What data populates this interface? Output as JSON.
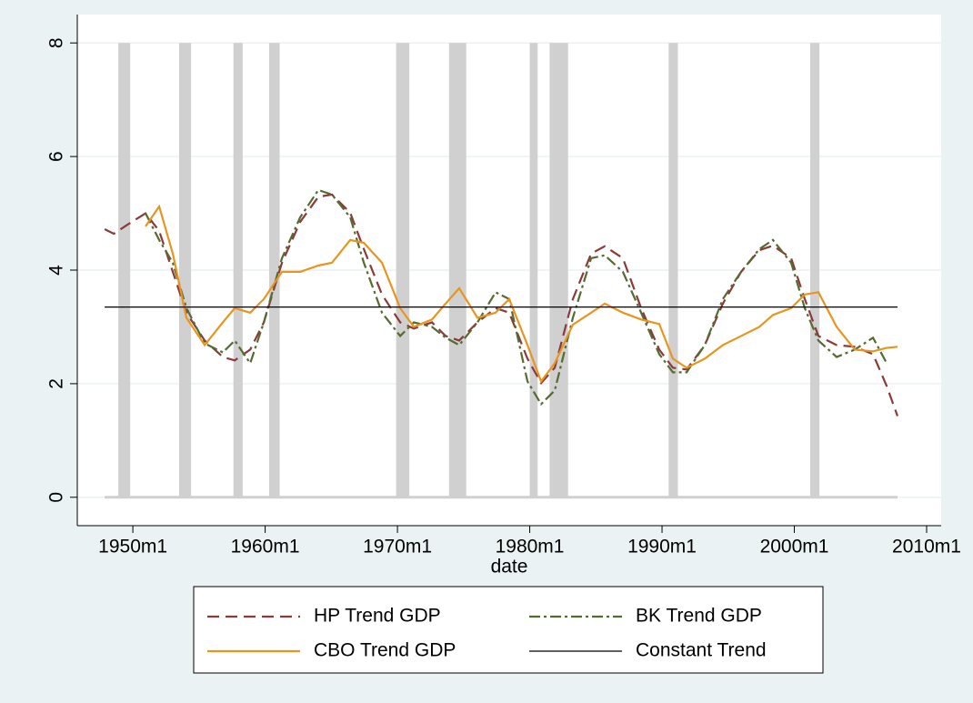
{
  "chart_data": {
    "type": "line",
    "xlabel": "date",
    "x": [
      1947.87,
      1948.56,
      1949.59,
      1950.96,
      1951.99,
      1953.02,
      1954.05,
      1955.43,
      1956.8,
      1957.7,
      1958.87,
      1959.9,
      1961.27,
      1962.65,
      1964.02,
      1965.05,
      1966.43,
      1967.46,
      1968.83,
      1970.21,
      1971.24,
      1972.61,
      1973.64,
      1974.67,
      1976.05,
      1977.42,
      1978.45,
      1979.83,
      1980.86,
      1981.89,
      1983.26,
      1984.64,
      1985.67,
      1987.04,
      1988.42,
      1989.79,
      1990.82,
      1991.86,
      1993.23,
      1994.6,
      1995.98,
      1997.35,
      1998.38,
      1999.76,
      2000.79,
      2001.82,
      2003.2,
      2004.57,
      2005.95,
      2006.98,
      2007.8
    ],
    "xlim": [
      1945.8,
      2011.1
    ],
    "xticks": [
      {
        "value": 1950,
        "label": "1950m1"
      },
      {
        "value": 1960,
        "label": "1960m1"
      },
      {
        "value": 1970,
        "label": "1970m1"
      },
      {
        "value": 1980,
        "label": "1980m1"
      },
      {
        "value": 1990,
        "label": "1990m1"
      },
      {
        "value": 2000,
        "label": "2000m1"
      },
      {
        "value": 2010,
        "label": "2010m1"
      }
    ],
    "ylim": [
      -0.5,
      8.5
    ],
    "yticks": [
      0,
      2,
      4,
      6,
      8
    ],
    "grid": true,
    "legend_position": "bottom",
    "recession_color": "#d0d0d0",
    "recession_height": 8,
    "recessions": [
      {
        "start": 1948.9,
        "end": 1949.8
      },
      {
        "start": 1953.5,
        "end": 1954.4
      },
      {
        "start": 1957.6,
        "end": 1958.3
      },
      {
        "start": 1960.3,
        "end": 1961.1
      },
      {
        "start": 1969.9,
        "end": 1970.9
      },
      {
        "start": 1973.9,
        "end": 1975.2
      },
      {
        "start": 1980.0,
        "end": 1980.6
      },
      {
        "start": 1981.5,
        "end": 1982.9
      },
      {
        "start": 1990.5,
        "end": 1991.2
      },
      {
        "start": 2001.2,
        "end": 2001.9
      }
    ],
    "series": [
      {
        "name": "HP Trend GDP",
        "color": "#8b3a3a",
        "dash": "dashed",
        "values": [
          4.72,
          4.64,
          4.8,
          5.0,
          4.69,
          3.97,
          3.25,
          2.76,
          2.47,
          2.41,
          2.6,
          3.08,
          4.13,
          4.85,
          5.29,
          5.33,
          5.01,
          4.37,
          3.57,
          3.08,
          2.97,
          3.08,
          2.84,
          2.76,
          3.08,
          3.33,
          3.25,
          2.44,
          2.01,
          2.28,
          3.49,
          4.29,
          4.42,
          4.21,
          3.33,
          2.6,
          2.28,
          2.25,
          2.68,
          3.41,
          3.97,
          4.35,
          4.43,
          4.21,
          3.49,
          2.84,
          2.68,
          2.65,
          2.52,
          1.96,
          1.43
        ]
      },
      {
        "name": "BK Trend GDP",
        "color": "#556b2f",
        "dash": "dashdot",
        "values": [
          null,
          null,
          null,
          5.0,
          4.53,
          4.13,
          3.33,
          2.71,
          2.55,
          2.76,
          2.36,
          3.08,
          4.21,
          4.93,
          5.41,
          5.33,
          4.93,
          4.13,
          3.25,
          2.84,
          3.08,
          3.0,
          2.81,
          2.68,
          3.08,
          3.61,
          3.49,
          2.04,
          1.64,
          1.88,
          3.16,
          4.21,
          4.26,
          3.97,
          3.25,
          2.52,
          2.2,
          2.2,
          2.68,
          3.49,
          3.97,
          4.37,
          4.53,
          4.13,
          3.33,
          2.76,
          2.47,
          2.6,
          2.81,
          2.36,
          null
        ]
      },
      {
        "name": "CBO Trend GDP",
        "color": "#e8951f",
        "dash": "solid",
        "values": [
          null,
          null,
          null,
          4.77,
          5.12,
          4.29,
          3.16,
          2.68,
          3.08,
          3.33,
          3.25,
          3.49,
          3.97,
          3.97,
          4.08,
          4.13,
          4.53,
          4.48,
          4.13,
          3.33,
          3.0,
          3.13,
          3.41,
          3.68,
          3.16,
          3.25,
          3.49,
          2.68,
          2.04,
          2.36,
          3.04,
          3.25,
          3.41,
          3.25,
          3.13,
          3.05,
          2.44,
          2.28,
          2.44,
          2.68,
          2.84,
          3.0,
          3.21,
          3.33,
          3.57,
          3.61,
          3.0,
          2.6,
          2.57,
          2.63,
          2.65
        ]
      },
      {
        "name": "Constant Trend",
        "color": "#000000",
        "dash": "solid",
        "values": [
          3.35,
          3.35,
          3.35,
          3.35,
          3.35,
          3.35,
          3.35,
          3.35,
          3.35,
          3.35,
          3.35,
          3.35,
          3.35,
          3.35,
          3.35,
          3.35,
          3.35,
          3.35,
          3.35,
          3.35,
          3.35,
          3.35,
          3.35,
          3.35,
          3.35,
          3.35,
          3.35,
          3.35,
          3.35,
          3.35,
          3.35,
          3.35,
          3.35,
          3.35,
          3.35,
          3.35,
          3.35,
          3.35,
          3.35,
          3.35,
          3.35,
          3.35,
          3.35,
          3.35,
          3.35,
          3.35,
          3.35,
          3.35,
          3.35,
          3.35,
          3.35
        ]
      }
    ]
  }
}
